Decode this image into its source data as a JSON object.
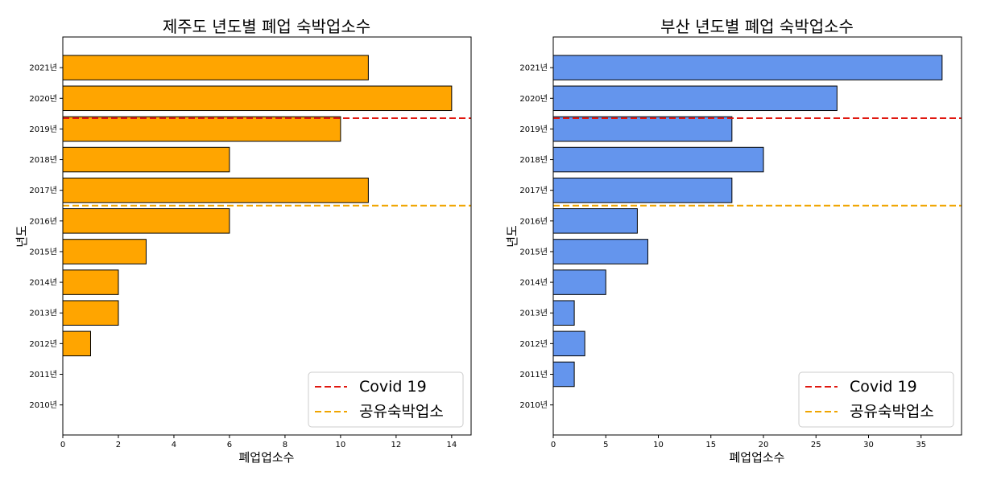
{
  "colors": {
    "covid_line": "#e0170f",
    "sharing_line": "#f0a500"
  },
  "legend": {
    "covid_label": "Covid 19",
    "sharing_label": "공유숙박업소"
  },
  "chart_data": [
    {
      "type": "bar",
      "orientation": "horizontal",
      "title": "제주도 년도별 폐업 숙박업소수",
      "xlabel": "폐업업소수",
      "ylabel": "년도",
      "categories": [
        "2010년",
        "2011년",
        "2012년",
        "2013년",
        "2014년",
        "2015년",
        "2016년",
        "2017년",
        "2018년",
        "2019년",
        "2020년",
        "2021년"
      ],
      "values": [
        0,
        0,
        1,
        2,
        2,
        3,
        6,
        11,
        6,
        10,
        14,
        11
      ],
      "xlim": [
        0,
        14.7
      ],
      "xticks": [
        0,
        2,
        4,
        6,
        8,
        10,
        12,
        14
      ],
      "bar_color": "#ffa500",
      "reference_lines": [
        {
          "label": "Covid 19",
          "at": 9.35,
          "color": "#e0170f",
          "style": "dashed"
        },
        {
          "label": "공유숙박업소",
          "at": 6.5,
          "color": "#f0a500",
          "style": "dashed"
        }
      ],
      "legend_position": "lower right",
      "grid": false
    },
    {
      "type": "bar",
      "orientation": "horizontal",
      "title": "부산 년도별 폐업 숙박업소수",
      "xlabel": "폐업업소수",
      "ylabel": "년도",
      "categories": [
        "2010년",
        "2011년",
        "2012년",
        "2013년",
        "2014년",
        "2015년",
        "2016년",
        "2017년",
        "2018년",
        "2019년",
        "2020년",
        "2021년"
      ],
      "values": [
        0,
        2,
        3,
        2,
        5,
        9,
        8,
        17,
        20,
        17,
        27,
        37
      ],
      "xlim": [
        0,
        38.85
      ],
      "xticks": [
        0,
        5,
        10,
        15,
        20,
        25,
        30,
        35
      ],
      "bar_color": "#6495ed",
      "reference_lines": [
        {
          "label": "Covid 19",
          "at": 9.35,
          "color": "#e0170f",
          "style": "dashed"
        },
        {
          "label": "공유숙박업소",
          "at": 6.5,
          "color": "#f0a500",
          "style": "dashed"
        }
      ],
      "legend_position": "lower right",
      "grid": false
    }
  ]
}
